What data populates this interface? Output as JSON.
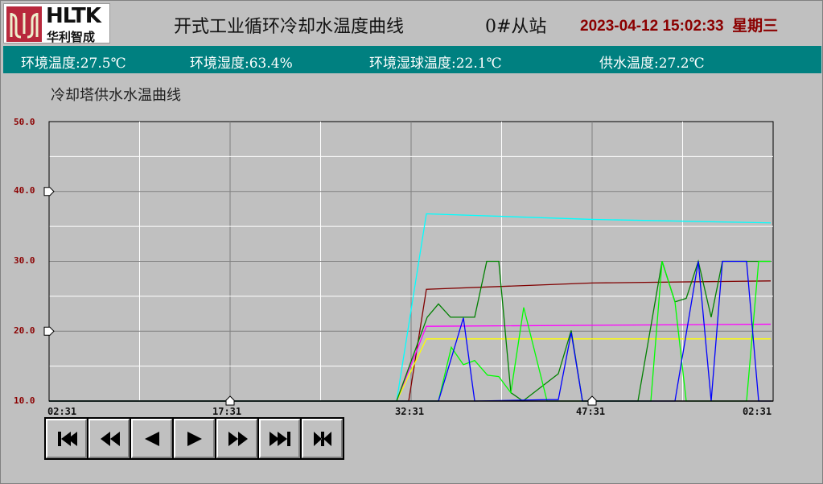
{
  "header": {
    "logo_text": "HLTK",
    "logo_cn": "华利智成",
    "title": "开式工业循环冷却水温度曲线",
    "station": "0#从站",
    "datetime": "2023-04-12 15:02:33",
    "weekday": "星期三"
  },
  "status_band": [
    {
      "label": "环境温度:",
      "value": "27.5℃"
    },
    {
      "label": "环境湿度:",
      "value": "63.4%"
    },
    {
      "label": "环境湿球温度:",
      "value": "22.1℃"
    },
    {
      "label": "供水温度:",
      "value": "27.2℃"
    }
  ],
  "chart_title": "冷却塔供水水温曲线",
  "chart_data": {
    "type": "line",
    "ylim": [
      10,
      50
    ],
    "y_ticks": [
      "50.0",
      "40.0",
      "30.0",
      "20.0",
      "10.0"
    ],
    "x_range": [
      "14:02:31",
      "15:02:31"
    ],
    "x_ticks": [
      "02:31",
      "17:31",
      "32:31",
      "47:31",
      "02:31"
    ],
    "y_markers": [
      40,
      20
    ],
    "x_cursors": [
      "14:17:31",
      "14:47:31"
    ],
    "grid": true,
    "series": [
      {
        "color": "#00ffff",
        "points": [
          [
            "14:02:31",
            10
          ],
          [
            "14:31:19",
            10
          ],
          [
            "14:33:47",
            36.8
          ],
          [
            "14:47:31",
            36.0
          ],
          [
            "15:02:19",
            35.5
          ]
        ]
      },
      {
        "color": "#800000",
        "points": [
          [
            "14:02:31",
            10
          ],
          [
            "14:32:19",
            10
          ],
          [
            "14:33:47",
            26.0
          ],
          [
            "14:47:31",
            26.9
          ],
          [
            "15:02:19",
            27.2
          ]
        ]
      },
      {
        "color": "#ff00ff",
        "points": [
          [
            "14:02:31",
            10
          ],
          [
            "14:31:19",
            10
          ],
          [
            "14:33:47",
            20.7
          ],
          [
            "15:02:19",
            21.0
          ]
        ]
      },
      {
        "color": "#ffff00",
        "points": [
          [
            "14:02:31",
            10
          ],
          [
            "14:31:19",
            10
          ],
          [
            "14:33:47",
            18.9
          ],
          [
            "15:02:19",
            18.9
          ]
        ]
      },
      {
        "color": "#008000",
        "points": [
          [
            "14:02:31",
            10
          ],
          [
            "14:31:19",
            10
          ],
          [
            "14:33:51",
            22.0
          ],
          [
            "14:34:47",
            23.9
          ],
          [
            "14:35:47",
            22.0
          ],
          [
            "14:37:47",
            22.0
          ],
          [
            "14:38:47",
            30
          ],
          [
            "14:39:47",
            30
          ],
          [
            "14:40:47",
            11.2
          ],
          [
            "14:41:47",
            10
          ],
          [
            "14:44:43",
            13.9
          ],
          [
            "14:45:47",
            20.1
          ],
          [
            "14:46:43",
            10
          ],
          [
            "14:51:19",
            10
          ],
          [
            "14:53:19",
            30
          ],
          [
            "14:54:23",
            24.2
          ],
          [
            "14:55:19",
            24.7
          ],
          [
            "14:56:19",
            30
          ],
          [
            "14:57:23",
            22.0
          ],
          [
            "14:58:19",
            30
          ],
          [
            "15:02:19",
            30
          ]
        ]
      },
      {
        "color": "#00ff00",
        "points": [
          [
            "14:02:31",
            10
          ],
          [
            "14:34:47",
            10
          ],
          [
            "14:35:51",
            17.7
          ],
          [
            "14:36:51",
            15.2
          ],
          [
            "14:37:47",
            15.8
          ],
          [
            "14:38:51",
            13.7
          ],
          [
            "14:39:47",
            13.5
          ],
          [
            "14:40:47",
            11.2
          ],
          [
            "14:41:51",
            23.4
          ],
          [
            "14:43:47",
            10
          ],
          [
            "14:52:23",
            10
          ],
          [
            "14:53:19",
            30
          ],
          [
            "14:54:23",
            24.2
          ],
          [
            "14:55:19",
            10
          ],
          [
            "15:00:19",
            10
          ],
          [
            "15:01:19",
            30
          ],
          [
            "15:02:19",
            30
          ]
        ]
      },
      {
        "color": "#0000ff",
        "points": [
          [
            "14:02:31",
            10
          ],
          [
            "14:34:47",
            10
          ],
          [
            "14:36:51",
            21.9
          ],
          [
            "14:37:47",
            10
          ],
          [
            "14:43:47",
            10.2
          ],
          [
            "14:44:43",
            10.2
          ],
          [
            "14:45:47",
            19.8
          ],
          [
            "14:46:43",
            10
          ],
          [
            "14:54:23",
            10
          ],
          [
            "14:56:19",
            30
          ],
          [
            "14:57:23",
            10
          ],
          [
            "14:58:19",
            30
          ],
          [
            "15:00:19",
            30
          ],
          [
            "15:01:19",
            10
          ],
          [
            "15:02:19",
            10
          ]
        ]
      }
    ]
  },
  "controls": [
    {
      "name": "first",
      "icon": "skip-first-icon"
    },
    {
      "name": "fast-back",
      "icon": "fast-rewind-icon"
    },
    {
      "name": "back",
      "icon": "step-back-icon"
    },
    {
      "name": "forward",
      "icon": "step-forward-icon"
    },
    {
      "name": "fast-forward",
      "icon": "fast-forward-icon"
    },
    {
      "name": "last",
      "icon": "skip-last-icon"
    },
    {
      "name": "fit",
      "icon": "fit-range-icon"
    }
  ]
}
